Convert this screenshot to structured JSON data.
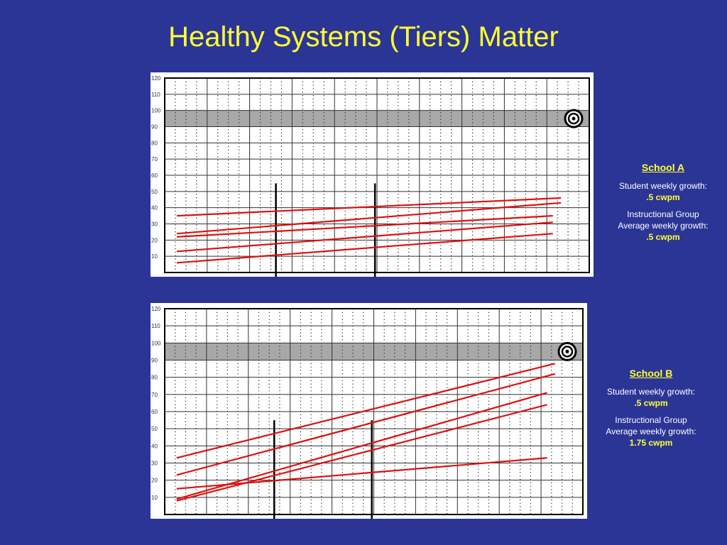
{
  "title": "Healthy Systems (Tiers) Matter",
  "colors": {
    "background": "#2b3596",
    "title": "#ffff33",
    "trend_line": "#e01010",
    "goal_band": "#a8a8a8",
    "phase_line": "#000000"
  },
  "icons": {
    "goal": "target-icon"
  },
  "chart_data": [
    {
      "type": "line",
      "yticks": [
        10,
        20,
        30,
        40,
        50,
        60,
        70,
        80,
        90,
        100,
        110,
        120
      ],
      "ylim": [
        0,
        120
      ],
      "xlim": [
        0,
        10.5
      ],
      "grid": true,
      "goal_band": [
        90,
        100
      ],
      "phase_changes": [
        2.75,
        5.2
      ],
      "series": [
        {
          "x": [
            0.3,
            9.8
          ],
          "y": [
            35,
            46
          ]
        },
        {
          "x": [
            0.3,
            9.8
          ],
          "y": [
            24,
            43
          ]
        },
        {
          "x": [
            0.3,
            9.6
          ],
          "y": [
            22,
            35
          ]
        },
        {
          "x": [
            0.3,
            9.6
          ],
          "y": [
            13,
            31
          ]
        },
        {
          "x": [
            0.3,
            9.6
          ],
          "y": [
            6,
            24
          ]
        }
      ],
      "legend": {
        "school": "School A",
        "student_label": "Student weekly growth:",
        "student_value": ".5 cwpm",
        "group_label_1": "Instructional Group",
        "group_label_2": "Average weekly growth:",
        "group_value": ".5 cwpm"
      }
    },
    {
      "type": "line",
      "yticks": [
        10,
        20,
        30,
        40,
        50,
        60,
        70,
        80,
        90,
        100,
        110,
        120
      ],
      "ylim": [
        0,
        120
      ],
      "xlim": [
        0,
        10.5
      ],
      "grid": true,
      "goal_band": [
        90,
        100
      ],
      "phase_changes": [
        2.75,
        5.2
      ],
      "series": [
        {
          "x": [
            0.3,
            9.8
          ],
          "y": [
            33,
            88
          ]
        },
        {
          "x": [
            0.3,
            9.8
          ],
          "y": [
            23,
            82
          ]
        },
        {
          "x": [
            0.3,
            9.6
          ],
          "y": [
            15,
            33
          ]
        },
        {
          "x": [
            0.3,
            9.6
          ],
          "y": [
            9,
            71
          ]
        },
        {
          "x": [
            0.3,
            9.6
          ],
          "y": [
            8,
            64
          ]
        }
      ],
      "legend": {
        "school": "School B",
        "student_label": "Student weekly growth:",
        "student_value": ".5 cwpm",
        "group_label_1": "Instructional Group",
        "group_label_2": "Average weekly growth:",
        "group_value": "1.75 cwpm"
      }
    }
  ]
}
